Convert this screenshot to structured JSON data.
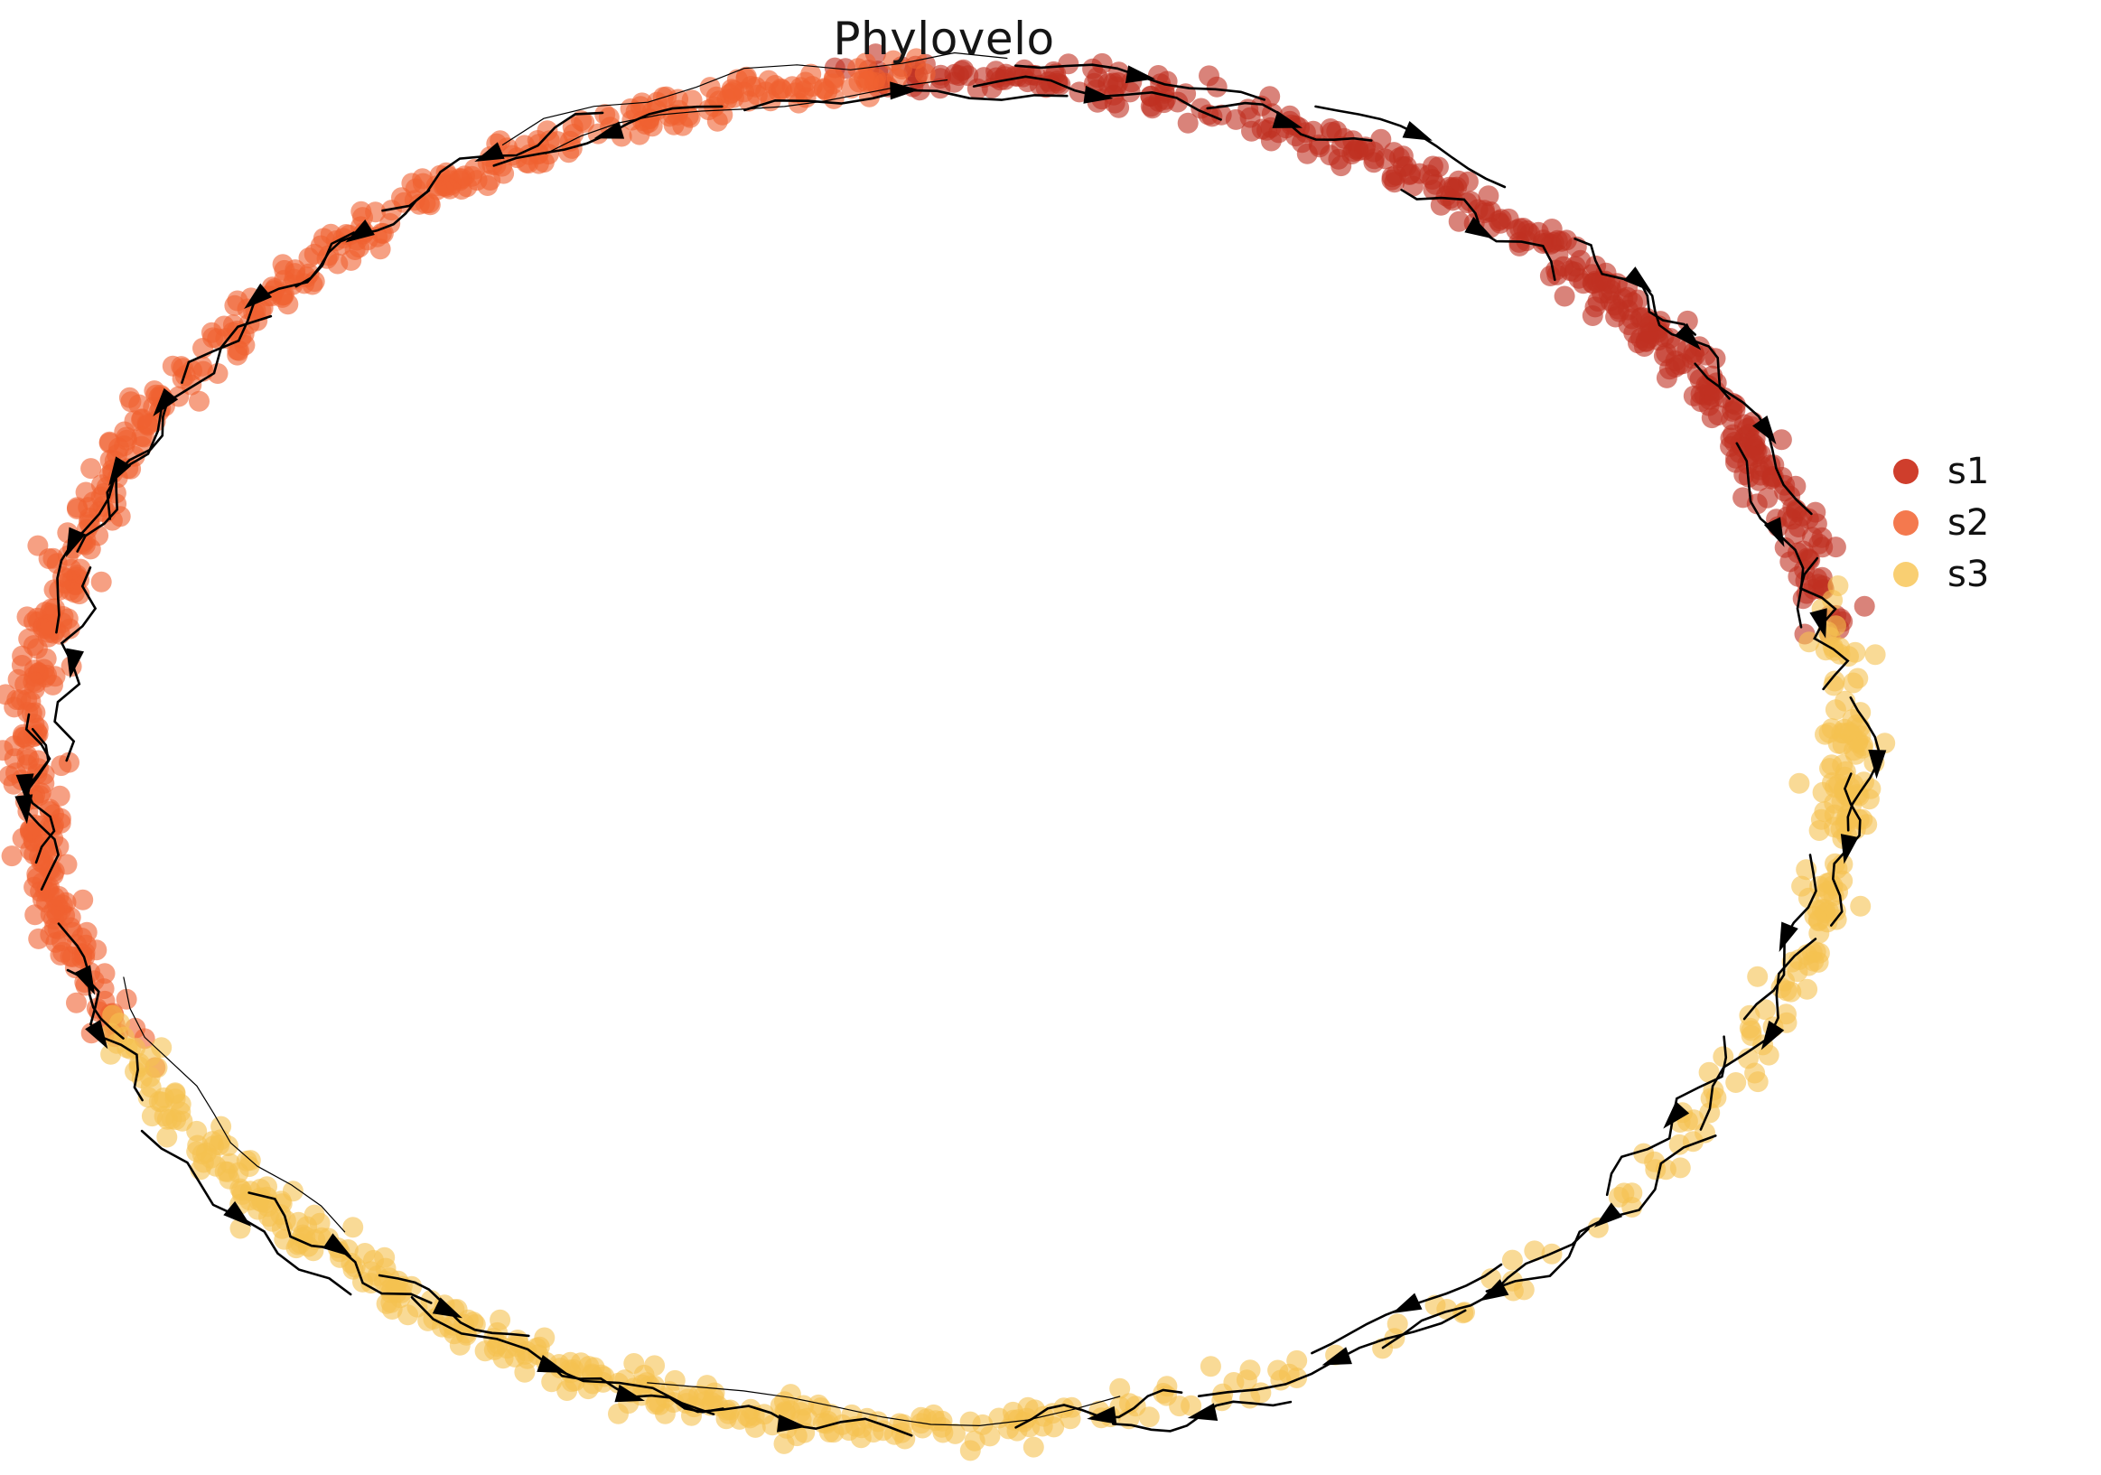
{
  "chart_data": {
    "type": "scatter",
    "title": "Phylovelo",
    "axes_visible": false,
    "background_color": "#ffffff",
    "legend_position": "center right",
    "legend_labels": [
      "s1",
      "s2",
      "s3"
    ],
    "embedding": {
      "cx": 1042,
      "cy": 832,
      "rx": 1005,
      "ry": 748,
      "point_radius": 11.5,
      "point_opacity": 0.6,
      "radial_sigma": 0.014,
      "seed": 20240613
    },
    "series": [
      {
        "name": "s1",
        "color": "#bf3122",
        "legend_color": "#cf3e2c",
        "clusters": [
          [
            91,
            2.5,
            28
          ],
          [
            84,
            2.5,
            30
          ],
          [
            77,
            2,
            26
          ],
          [
            70,
            2.5,
            30
          ],
          [
            63,
            2,
            28
          ],
          [
            57,
            2,
            26
          ],
          [
            50,
            2.5,
            34
          ],
          [
            43,
            2.5,
            38
          ],
          [
            37,
            2,
            36
          ],
          [
            31,
            2,
            34
          ],
          [
            26,
            1.8,
            28
          ],
          [
            21,
            2,
            24
          ],
          [
            16,
            2,
            20
          ],
          [
            12,
            1.5,
            12
          ]
        ]
      },
      {
        "name": "s2",
        "color": "#f06030",
        "legend_color": "#f4794e",
        "clusters": [
          [
            95,
            2,
            22
          ],
          [
            100,
            2.5,
            26
          ],
          [
            106,
            2.5,
            28
          ],
          [
            112,
            2.5,
            26
          ],
          [
            118,
            2.5,
            28
          ],
          [
            124,
            2.5,
            26
          ],
          [
            130,
            2.5,
            28
          ],
          [
            136,
            2.5,
            26
          ],
          [
            142,
            2.5,
            28
          ],
          [
            149,
            2.5,
            30
          ],
          [
            156,
            2.5,
            30
          ],
          [
            163,
            3,
            34
          ],
          [
            170,
            3,
            36
          ],
          [
            177,
            3,
            38
          ],
          [
            184,
            3,
            40
          ],
          [
            191,
            2.5,
            36
          ],
          [
            197,
            2.5,
            30
          ],
          [
            203,
            2,
            20
          ]
        ]
      },
      {
        "name": "s3",
        "color": "#f5c150",
        "legend_color": "#f9cf72",
        "clusters": [
          [
            207,
            2,
            18
          ],
          [
            213,
            2.5,
            26
          ],
          [
            220,
            2.5,
            32
          ],
          [
            226,
            2,
            28
          ],
          [
            233,
            2.5,
            30
          ],
          [
            240,
            2.5,
            30
          ],
          [
            247,
            2.5,
            32
          ],
          [
            254,
            2.5,
            34
          ],
          [
            261,
            2.5,
            30
          ],
          [
            268,
            2.5,
            26
          ],
          [
            275,
            2.5,
            22
          ],
          [
            283,
            3,
            16
          ],
          [
            292,
            4,
            12
          ],
          [
            302,
            5,
            10
          ],
          [
            313,
            5,
            10
          ],
          [
            323,
            4,
            12
          ],
          [
            332,
            3.5,
            16
          ],
          [
            340,
            3,
            20
          ],
          [
            348,
            2.5,
            28
          ],
          [
            355,
            2,
            34
          ],
          [
            361,
            2,
            30
          ],
          [
            367,
            2.5,
            20
          ]
        ]
      }
    ],
    "streamlines": {
      "color": "#000000",
      "count": 44,
      "stroke_width": 2.6,
      "thin_stroke_width": 1.2,
      "arrow_length": 32,
      "arrow_width": 20,
      "arc_deg_min": 10,
      "arc_deg_max": 22,
      "source_angle_deg": 90,
      "sink_angle_deg": 270
    }
  }
}
